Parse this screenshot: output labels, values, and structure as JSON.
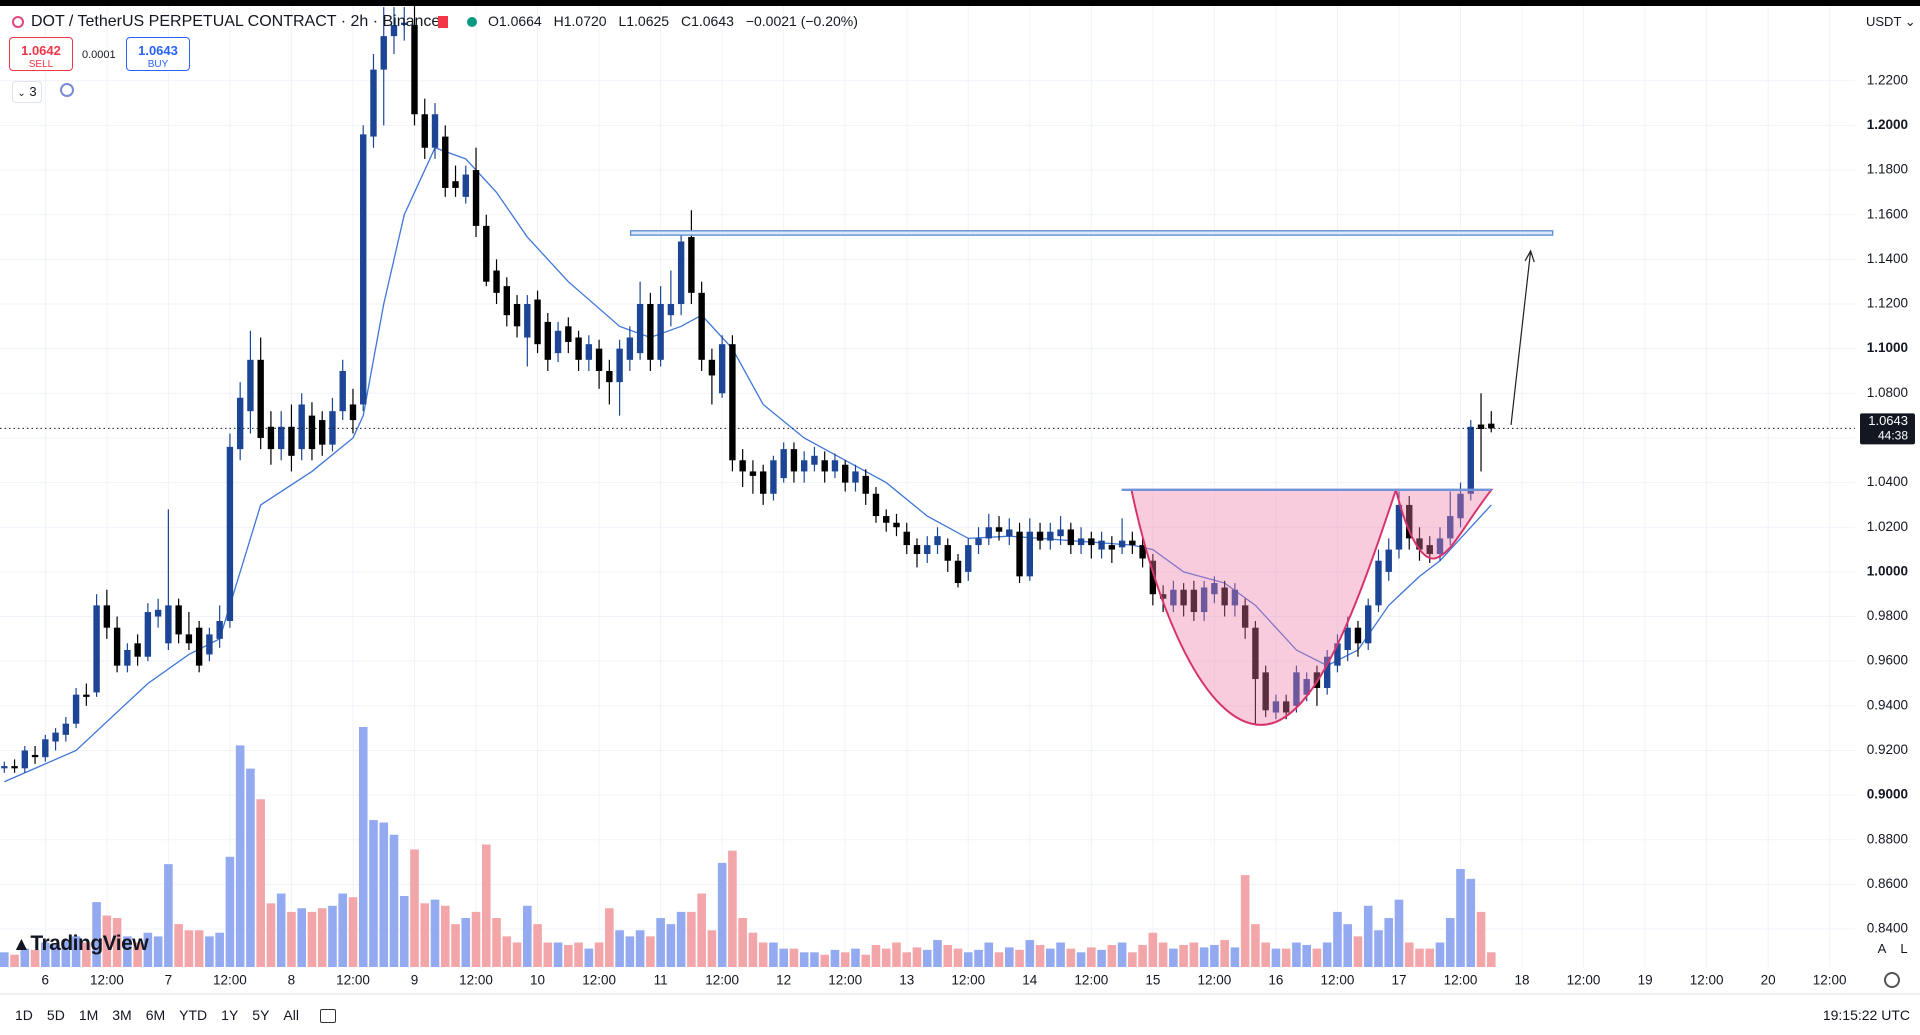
{
  "toolbar": {
    "sell_price": "1.0642",
    "sell_label": "SELL",
    "spread": "0.0001",
    "buy_price": "1.0643",
    "buy_label": "BUY",
    "indicators": "3",
    "currency": "USDT",
    "countdown": "44:38",
    "logo": "TradingView",
    "scale_buttons": [
      "A",
      "L"
    ],
    "ranges": [
      "1D",
      "5D",
      "1M",
      "3M",
      "6M",
      "YTD",
      "1Y",
      "5Y",
      "All"
    ],
    "clock": "19:15:22 UTC",
    "legend": [
      {
        "key": "O",
        "value": "1.0664"
      },
      {
        "key": "H",
        "value": "1.0720"
      },
      {
        "key": "L",
        "value": "1.0625"
      },
      {
        "key": "C",
        "value": "1.0643"
      }
    ],
    "change": "−0.0021 (−0.20%)"
  },
  "chart_data": {
    "type": "candlestick",
    "title": "DOT / TetherUS PERPETUAL CONTRACT · 2h · Binance",
    "up_color": "#1c4596",
    "down_color": "#000000",
    "volume_up_color": "#93aaf0",
    "volume_down_color": "#f2a6a9",
    "ma_color": "#3f76d8",
    "grid": true,
    "ylim": [
      0.823,
      1.2535
    ],
    "yticks": [
      {
        "value": 0.84,
        "label": "0.8400"
      },
      {
        "value": 0.86,
        "label": "0.8600"
      },
      {
        "value": 0.88,
        "label": "0.8800"
      },
      {
        "value": 0.9,
        "label": "0.9000"
      },
      {
        "value": 0.92,
        "label": "0.9200"
      },
      {
        "value": 0.94,
        "label": "0.9400"
      },
      {
        "value": 0.96,
        "label": "0.9600"
      },
      {
        "value": 0.98,
        "label": "0.9800"
      },
      {
        "value": 1.0,
        "label": "1.0000"
      },
      {
        "value": 1.02,
        "label": "1.0200"
      },
      {
        "value": 1.04,
        "label": "1.0400"
      },
      {
        "value": 1.06,
        "label": "1.0600"
      },
      {
        "value": 1.08,
        "label": "1.0800"
      },
      {
        "value": 1.1,
        "label": "1.1000"
      },
      {
        "value": 1.12,
        "label": "1.1200"
      },
      {
        "value": 1.14,
        "label": "1.1400"
      },
      {
        "value": 1.16,
        "label": "1.1600"
      },
      {
        "value": 1.18,
        "label": "1.1800"
      },
      {
        "value": 1.2,
        "label": "1.2000"
      },
      {
        "value": 1.22,
        "label": "1.2200"
      }
    ],
    "categories": [
      null,
      null,
      null,
      null,
      "6",
      null,
      null,
      null,
      null,
      null,
      "12:00",
      null,
      null,
      null,
      null,
      null,
      "7",
      null,
      null,
      null,
      null,
      null,
      "12:00",
      null,
      null,
      null,
      null,
      null,
      "8",
      null,
      null,
      null,
      null,
      null,
      "12:00",
      null,
      null,
      null,
      null,
      null,
      "9",
      null,
      null,
      null,
      null,
      null,
      "12:00",
      null,
      null,
      null,
      null,
      null,
      "10",
      null,
      null,
      null,
      null,
      null,
      "12:00",
      null,
      null,
      null,
      null,
      null,
      "11",
      null,
      null,
      null,
      null,
      null,
      "12:00",
      null,
      null,
      null,
      null,
      null,
      "12",
      null,
      null,
      null,
      null,
      null,
      "12:00",
      null,
      null,
      null,
      null,
      null,
      "13",
      null,
      null,
      null,
      null,
      null,
      "12:00",
      null,
      null,
      null,
      null,
      null,
      "14",
      null,
      null,
      null,
      null,
      null,
      "12:00",
      null,
      null,
      null,
      null,
      null,
      "15",
      null,
      null,
      null,
      null,
      null,
      "12:00",
      null,
      null,
      null,
      null,
      null,
      "16",
      null,
      null,
      null,
      null,
      null,
      "12:00",
      null,
      null,
      null,
      null,
      null,
      "17",
      null,
      null,
      null,
      null,
      null,
      "12:00",
      null,
      null,
      null
    ],
    "x_future_labels": [
      "18",
      "12:00",
      "19",
      "12:00",
      "20",
      "12:00"
    ],
    "ohlc": [
      [
        0.912,
        0.915,
        0.91,
        0.913
      ],
      [
        0.913,
        0.916,
        0.91,
        0.912
      ],
      [
        0.912,
        0.922,
        0.91,
        0.92
      ],
      [
        0.918,
        0.922,
        0.914,
        0.917
      ],
      [
        0.917,
        0.927,
        0.915,
        0.925
      ],
      [
        0.924,
        0.93,
        0.92,
        0.928
      ],
      [
        0.927,
        0.935,
        0.924,
        0.932
      ],
      [
        0.932,
        0.948,
        0.93,
        0.945
      ],
      [
        0.945,
        0.95,
        0.94,
        0.944
      ],
      [
        0.946,
        0.99,
        0.944,
        0.985
      ],
      [
        0.985,
        0.992,
        0.97,
        0.975
      ],
      [
        0.975,
        0.98,
        0.955,
        0.958
      ],
      [
        0.958,
        0.968,
        0.955,
        0.965
      ],
      [
        0.968,
        0.972,
        0.958,
        0.962
      ],
      [
        0.962,
        0.986,
        0.96,
        0.982
      ],
      [
        0.98,
        0.988,
        0.975,
        0.983
      ],
      [
        0.968,
        1.028,
        0.965,
        0.985
      ],
      [
        0.985,
        0.988,
        0.968,
        0.972
      ],
      [
        0.972,
        0.982,
        0.965,
        0.968
      ],
      [
        0.975,
        0.978,
        0.955,
        0.958
      ],
      [
        0.963,
        0.975,
        0.96,
        0.972
      ],
      [
        0.97,
        0.985,
        0.966,
        0.978
      ],
      [
        0.978,
        1.062,
        0.975,
        1.056
      ],
      [
        1.055,
        1.085,
        1.05,
        1.078
      ],
      [
        1.072,
        1.108,
        1.062,
        1.095
      ],
      [
        1.095,
        1.105,
        1.055,
        1.06
      ],
      [
        1.065,
        1.072,
        1.048,
        1.055
      ],
      [
        1.055,
        1.072,
        1.05,
        1.065
      ],
      [
        1.065,
        1.075,
        1.045,
        1.052
      ],
      [
        1.055,
        1.08,
        1.05,
        1.075
      ],
      [
        1.07,
        1.076,
        1.05,
        1.055
      ],
      [
        1.068,
        1.072,
        1.052,
        1.057
      ],
      [
        1.057,
        1.078,
        1.054,
        1.072
      ],
      [
        1.072,
        1.095,
        1.068,
        1.09
      ],
      [
        1.075,
        1.082,
        1.062,
        1.068
      ],
      [
        1.075,
        1.2,
        1.072,
        1.196
      ],
      [
        1.195,
        1.232,
        1.19,
        1.225
      ],
      [
        1.225,
        1.253,
        1.2,
        1.24
      ],
      [
        1.24,
        1.253,
        1.232,
        1.245
      ],
      [
        1.245,
        1.253,
        1.238,
        1.246
      ],
      [
        1.245,
        1.255,
        1.2,
        1.205
      ],
      [
        1.205,
        1.212,
        1.185,
        1.19
      ],
      [
        1.19,
        1.21,
        1.185,
        1.205
      ],
      [
        1.195,
        1.2,
        1.168,
        1.172
      ],
      [
        1.175,
        1.182,
        1.168,
        1.172
      ],
      [
        1.168,
        1.182,
        1.165,
        1.178
      ],
      [
        1.18,
        1.19,
        1.15,
        1.155
      ],
      [
        1.155,
        1.16,
        1.128,
        1.13
      ],
      [
        1.135,
        1.14,
        1.12,
        1.125
      ],
      [
        1.128,
        1.132,
        1.11,
        1.115
      ],
      [
        1.12,
        1.124,
        1.105,
        1.11
      ],
      [
        1.105,
        1.124,
        1.092,
        1.12
      ],
      [
        1.122,
        1.126,
        1.098,
        1.102
      ],
      [
        1.112,
        1.116,
        1.09,
        1.095
      ],
      [
        1.098,
        1.112,
        1.094,
        1.108
      ],
      [
        1.11,
        1.114,
        1.098,
        1.103
      ],
      [
        1.105,
        1.108,
        1.09,
        1.095
      ],
      [
        1.095,
        1.106,
        1.09,
        1.102
      ],
      [
        1.1,
        1.104,
        1.082,
        1.09
      ],
      [
        1.09,
        1.095,
        1.075,
        1.085
      ],
      [
        1.085,
        1.104,
        1.07,
        1.1
      ],
      [
        1.095,
        1.11,
        1.09,
        1.105
      ],
      [
        1.098,
        1.13,
        1.095,
        1.12
      ],
      [
        1.12,
        1.125,
        1.09,
        1.095
      ],
      [
        1.095,
        1.128,
        1.092,
        1.12
      ],
      [
        1.115,
        1.135,
        1.11,
        1.12
      ],
      [
        1.12,
        1.152,
        1.115,
        1.148
      ],
      [
        1.15,
        1.162,
        1.12,
        1.125
      ],
      [
        1.125,
        1.13,
        1.09,
        1.095
      ],
      [
        1.095,
        1.1,
        1.075,
        1.088
      ],
      [
        1.08,
        1.106,
        1.078,
        1.102
      ],
      [
        1.102,
        1.106,
        1.045,
        1.05
      ],
      [
        1.05,
        1.055,
        1.038,
        1.045
      ],
      [
        1.045,
        1.05,
        1.035,
        1.043
      ],
      [
        1.045,
        1.048,
        1.03,
        1.035
      ],
      [
        1.035,
        1.052,
        1.032,
        1.05
      ],
      [
        1.042,
        1.058,
        1.04,
        1.055
      ],
      [
        1.055,
        1.058,
        1.04,
        1.045
      ],
      [
        1.045,
        1.054,
        1.04,
        1.05
      ],
      [
        1.048,
        1.056,
        1.045,
        1.052
      ],
      [
        1.05,
        1.054,
        1.04,
        1.045
      ],
      [
        1.045,
        1.053,
        1.042,
        1.05
      ],
      [
        1.048,
        1.05,
        1.036,
        1.04
      ],
      [
        1.04,
        1.048,
        1.036,
        1.045
      ],
      [
        1.043,
        1.046,
        1.03,
        1.035
      ],
      [
        1.035,
        1.038,
        1.022,
        1.025
      ],
      [
        1.025,
        1.028,
        1.018,
        1.022
      ],
      [
        1.022,
        1.026,
        1.016,
        1.02
      ],
      [
        1.018,
        1.022,
        1.008,
        1.012
      ],
      [
        1.012,
        1.015,
        1.002,
        1.008
      ],
      [
        1.008,
        1.016,
        1.004,
        1.012
      ],
      [
        1.012,
        1.02,
        1.008,
        1.016
      ],
      [
        1.012,
        1.015,
        1.0,
        1.005
      ],
      [
        1.005,
        1.008,
        0.993,
        0.995
      ],
      [
        1.0,
        1.015,
        0.996,
        1.012
      ],
      [
        1.012,
        1.02,
        1.008,
        1.015
      ],
      [
        1.015,
        1.026,
        1.012,
        1.02
      ],
      [
        1.02,
        1.025,
        1.014,
        1.018
      ],
      [
        1.016,
        1.024,
        1.012,
        1.019
      ],
      [
        1.018,
        1.022,
        0.995,
        0.998
      ],
      [
        0.998,
        1.024,
        0.996,
        1.018
      ],
      [
        1.018,
        1.022,
        1.01,
        1.014
      ],
      [
        1.014,
        1.022,
        1.01,
        1.018
      ],
      [
        1.016,
        1.025,
        1.012,
        1.019
      ],
      [
        1.019,
        1.022,
        1.008,
        1.012
      ],
      [
        1.012,
        1.02,
        1.008,
        1.015
      ],
      [
        1.015,
        1.018,
        1.006,
        1.012
      ],
      [
        1.01,
        1.018,
        1.006,
        1.014
      ],
      [
        1.012,
        1.016,
        1.004,
        1.01
      ],
      [
        1.011,
        1.024,
        1.008,
        1.014
      ],
      [
        1.014,
        1.018,
        1.008,
        1.012
      ],
      [
        1.012,
        1.016,
        1.002,
        1.006
      ],
      [
        1.005,
        1.008,
        0.985,
        0.99
      ],
      [
        0.99,
        0.994,
        0.982,
        0.988
      ],
      [
        0.985,
        0.996,
        0.982,
        0.992
      ],
      [
        0.992,
        0.995,
        0.98,
        0.985
      ],
      [
        0.992,
        0.996,
        0.978,
        0.982
      ],
      [
        0.982,
        0.996,
        0.978,
        0.993
      ],
      [
        0.99,
        0.998,
        0.986,
        0.995
      ],
      [
        0.993,
        0.996,
        0.98,
        0.985
      ],
      [
        0.985,
        0.995,
        0.98,
        0.992
      ],
      [
        0.985,
        0.988,
        0.97,
        0.975
      ],
      [
        0.975,
        0.978,
        0.932,
        0.952
      ],
      [
        0.955,
        0.958,
        0.935,
        0.938
      ],
      [
        0.937,
        0.945,
        0.934,
        0.942
      ],
      [
        0.942,
        0.945,
        0.934,
        0.937
      ],
      [
        0.94,
        0.958,
        0.937,
        0.955
      ],
      [
        0.945,
        0.955,
        0.942,
        0.952
      ],
      [
        0.955,
        0.958,
        0.94,
        0.948
      ],
      [
        0.948,
        0.965,
        0.945,
        0.962
      ],
      [
        0.958,
        0.972,
        0.955,
        0.968
      ],
      [
        0.965,
        0.98,
        0.96,
        0.975
      ],
      [
        0.975,
        0.978,
        0.962,
        0.968
      ],
      [
        0.968,
        0.988,
        0.965,
        0.985
      ],
      [
        0.985,
        1.01,
        0.982,
        1.005
      ],
      [
        1.0,
        1.015,
        0.996,
        1.01
      ],
      [
        1.01,
        1.036,
        1.006,
        1.03
      ],
      [
        1.03,
        1.034,
        1.01,
        1.015
      ],
      [
        1.015,
        1.02,
        1.005,
        1.01
      ],
      [
        1.012,
        1.016,
        1.004,
        1.008
      ],
      [
        1.008,
        1.02,
        1.005,
        1.015
      ],
      [
        1.015,
        1.036,
        1.012,
        1.025
      ],
      [
        1.024,
        1.04,
        1.02,
        1.035
      ],
      [
        1.035,
        1.068,
        1.032,
        1.065
      ],
      [
        1.066,
        1.08,
        1.045,
        1.064
      ],
      [
        1.0664,
        1.072,
        1.0625,
        1.0643
      ]
    ],
    "volume": [
      12,
      10,
      15,
      14,
      20,
      18,
      22,
      25,
      20,
      53,
      42,
      40,
      25,
      20,
      28,
      25,
      84,
      35,
      30,
      30,
      25,
      28,
      90,
      181,
      162,
      137,
      52,
      60,
      45,
      48,
      45,
      48,
      50,
      60,
      57,
      196,
      120,
      118,
      108,
      58,
      96,
      52,
      55,
      50,
      35,
      40,
      45,
      100,
      40,
      25,
      20,
      50,
      35,
      20,
      20,
      18,
      20,
      15,
      20,
      48,
      30,
      25,
      30,
      25,
      40,
      35,
      45,
      45,
      60,
      30,
      85,
      95,
      40,
      28,
      20,
      20,
      15,
      15,
      12,
      12,
      10,
      14,
      12,
      15,
      10,
      18,
      15,
      20,
      12,
      16,
      14,
      22,
      18,
      15,
      12,
      14,
      20,
      12,
      16,
      14,
      22,
      18,
      15,
      20,
      15,
      12,
      16,
      14,
      18,
      20,
      12,
      18,
      28,
      20,
      15,
      18,
      20,
      16,
      18,
      22,
      16,
      75,
      35,
      20,
      15,
      15,
      20,
      18,
      15,
      20,
      45,
      35,
      25,
      50,
      30,
      40,
      55,
      20,
      15,
      15,
      20,
      40,
      80,
      72,
      45,
      12
    ],
    "ma_x": [
      0,
      7,
      14,
      18,
      21,
      23,
      25,
      30,
      34,
      35,
      37,
      39,
      42,
      45,
      48,
      51,
      55,
      60,
      63,
      66,
      68,
      71,
      74,
      78,
      82,
      86,
      90,
      94,
      98,
      104,
      110,
      112,
      115,
      119,
      122,
      126,
      129,
      132,
      135,
      138,
      140,
      142,
      145
    ],
    "ma": [
      0.906,
      0.92,
      0.95,
      0.963,
      0.97,
      1.0,
      1.03,
      1.045,
      1.06,
      1.07,
      1.12,
      1.16,
      1.19,
      1.185,
      1.17,
      1.15,
      1.13,
      1.11,
      1.105,
      1.11,
      1.115,
      1.1,
      1.075,
      1.06,
      1.05,
      1.04,
      1.025,
      1.015,
      1.016,
      1.014,
      1.012,
      1.01,
      1.0,
      0.995,
      0.985,
      0.965,
      0.958,
      0.965,
      0.985,
      0.998,
      1.005,
      1.015,
      1.03
    ]
  }
}
